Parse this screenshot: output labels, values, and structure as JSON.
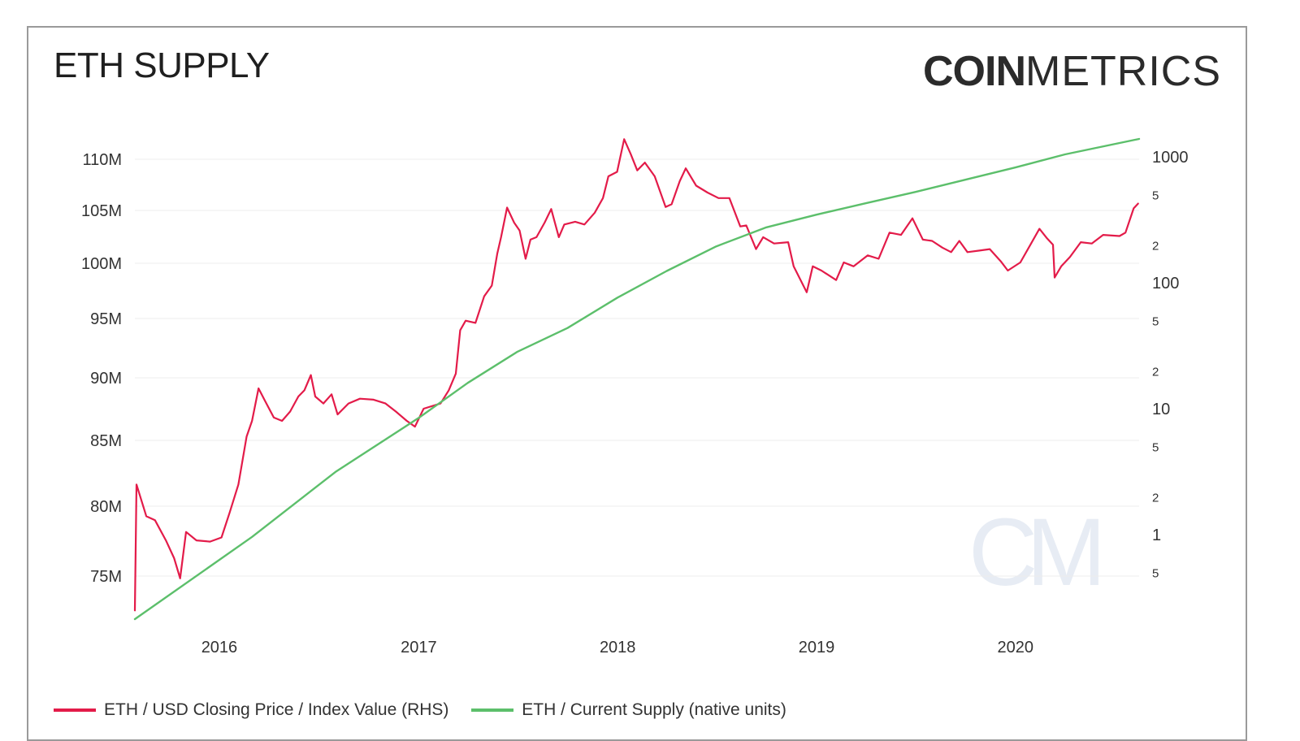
{
  "header": {
    "title": "ETH SUPPLY"
  },
  "logo": {
    "bold": "COIN",
    "light": "METRICS",
    "watermark": "CM"
  },
  "colors": {
    "price": "#e31b49",
    "supply": "#5cbf6b",
    "grid": "#ececec"
  },
  "chart_data": {
    "type": "line",
    "title": "ETH SUPPLY",
    "x_ticks": [
      "2016",
      "2017",
      "2018",
      "2019",
      "2020"
    ],
    "x_range": [
      "2015-07-30",
      "2020-08-15"
    ],
    "left_axis": {
      "ticks": [
        "75M",
        "80M",
        "85M",
        "90M",
        "95M",
        "100M",
        "105M",
        "110M"
      ],
      "tick_values": [
        75,
        80,
        85,
        90,
        95,
        100,
        105,
        110
      ],
      "unit": "millions"
    },
    "right_axis": {
      "scale": "log",
      "major_ticks": [
        {
          "label": "1",
          "value": 1
        },
        {
          "label": "10",
          "value": 10
        },
        {
          "label": "100",
          "value": 100
        },
        {
          "label": "1000",
          "value": 1000
        }
      ],
      "minor_ticks": [
        {
          "label": "5",
          "value": 0.5
        },
        {
          "label": "2",
          "value": 2
        },
        {
          "label": "5",
          "value": 5
        },
        {
          "label": "2",
          "value": 20
        },
        {
          "label": "5",
          "value": 50
        },
        {
          "label": "2",
          "value": 200
        },
        {
          "label": "5",
          "value": 500
        }
      ]
    },
    "legend_position": "bottom-left",
    "grid": true,
    "series": [
      {
        "name": "ETH / USD Closing Price / Index Value (RHS)",
        "axis": "right",
        "color": "#e31b49",
        "points": [
          [
            "2015-07-30",
            0.25
          ],
          [
            "2015-08-02",
            2.5
          ],
          [
            "2015-08-20",
            1.4
          ],
          [
            "2015-09-05",
            1.3
          ],
          [
            "2015-09-25",
            0.9
          ],
          [
            "2015-10-10",
            0.65
          ],
          [
            "2015-10-21",
            0.45
          ],
          [
            "2015-11-01",
            1.05
          ],
          [
            "2015-11-20",
            0.9
          ],
          [
            "2015-12-15",
            0.88
          ],
          [
            "2016-01-05",
            0.95
          ],
          [
            "2016-01-20",
            1.5
          ],
          [
            "2016-02-05",
            2.5
          ],
          [
            "2016-02-20",
            6.0
          ],
          [
            "2016-03-01",
            8.0
          ],
          [
            "2016-03-13",
            14.5
          ],
          [
            "2016-03-25",
            11.5
          ],
          [
            "2016-04-10",
            8.5
          ],
          [
            "2016-04-25",
            8.0
          ],
          [
            "2016-05-10",
            9.5
          ],
          [
            "2016-05-25",
            12.5
          ],
          [
            "2016-06-05",
            14.0
          ],
          [
            "2016-06-17",
            18.5
          ],
          [
            "2016-06-25",
            12.5
          ],
          [
            "2016-07-10",
            11.0
          ],
          [
            "2016-07-25",
            13.0
          ],
          [
            "2016-08-05",
            9.0
          ],
          [
            "2016-08-25",
            11.0
          ],
          [
            "2016-09-15",
            12.0
          ],
          [
            "2016-10-10",
            11.8
          ],
          [
            "2016-11-01",
            11.0
          ],
          [
            "2016-11-20",
            9.5
          ],
          [
            "2016-12-10",
            8.0
          ],
          [
            "2016-12-25",
            7.2
          ],
          [
            "2017-01-10",
            10.0
          ],
          [
            "2017-02-10",
            11.0
          ],
          [
            "2017-02-25",
            14.0
          ],
          [
            "2017-03-10",
            19.0
          ],
          [
            "2017-03-18",
            42.0
          ],
          [
            "2017-03-28",
            50.0
          ],
          [
            "2017-04-15",
            48.0
          ],
          [
            "2017-05-01",
            78.0
          ],
          [
            "2017-05-15",
            95.0
          ],
          [
            "2017-05-25",
            170.0
          ],
          [
            "2017-06-01",
            230.0
          ],
          [
            "2017-06-12",
            395.0
          ],
          [
            "2017-06-25",
            300.0
          ],
          [
            "2017-07-05",
            260.0
          ],
          [
            "2017-07-16",
            155.0
          ],
          [
            "2017-07-25",
            220.0
          ],
          [
            "2017-08-05",
            230.0
          ],
          [
            "2017-08-20",
            300.0
          ],
          [
            "2017-09-01",
            385.0
          ],
          [
            "2017-09-15",
            230.0
          ],
          [
            "2017-09-25",
            290.0
          ],
          [
            "2017-10-15",
            305.0
          ],
          [
            "2017-11-01",
            290.0
          ],
          [
            "2017-11-20",
            360.0
          ],
          [
            "2017-12-05",
            470.0
          ],
          [
            "2017-12-15",
            700.0
          ],
          [
            "2017-12-31",
            760.0
          ],
          [
            "2018-01-13",
            1380.0
          ],
          [
            "2018-01-25",
            1050.0
          ],
          [
            "2018-02-06",
            780.0
          ],
          [
            "2018-02-20",
            900.0
          ],
          [
            "2018-03-10",
            700.0
          ],
          [
            "2018-03-30",
            400.0
          ],
          [
            "2018-04-10",
            420.0
          ],
          [
            "2018-04-25",
            640.0
          ],
          [
            "2018-05-06",
            810.0
          ],
          [
            "2018-05-25",
            590.0
          ],
          [
            "2018-06-15",
            520.0
          ],
          [
            "2018-07-05",
            470.0
          ],
          [
            "2018-07-25",
            470.0
          ],
          [
            "2018-08-14",
            280.0
          ],
          [
            "2018-08-25",
            285.0
          ],
          [
            "2018-09-12",
            185.0
          ],
          [
            "2018-09-25",
            230.0
          ],
          [
            "2018-10-15",
            205.0
          ],
          [
            "2018-11-10",
            210.0
          ],
          [
            "2018-11-20",
            135.0
          ],
          [
            "2018-12-14",
            84.0
          ],
          [
            "2018-12-25",
            135.0
          ],
          [
            "2019-01-10",
            125.0
          ],
          [
            "2019-02-06",
            105.0
          ],
          [
            "2019-02-20",
            145.0
          ],
          [
            "2019-03-10",
            135.0
          ],
          [
            "2019-04-05",
            165.0
          ],
          [
            "2019-04-25",
            155.0
          ],
          [
            "2019-05-15",
            250.0
          ],
          [
            "2019-06-05",
            240.0
          ],
          [
            "2019-06-26",
            325.0
          ],
          [
            "2019-07-15",
            220.0
          ],
          [
            "2019-08-01",
            215.0
          ],
          [
            "2019-08-20",
            190.0
          ],
          [
            "2019-09-05",
            175.0
          ],
          [
            "2019-09-20",
            215.0
          ],
          [
            "2019-10-05",
            175.0
          ],
          [
            "2019-10-27",
            180.0
          ],
          [
            "2019-11-15",
            185.0
          ],
          [
            "2019-12-05",
            148.0
          ],
          [
            "2019-12-18",
            125.0
          ],
          [
            "2020-01-10",
            145.0
          ],
          [
            "2020-02-14",
            268.0
          ],
          [
            "2020-02-28",
            225.0
          ],
          [
            "2020-03-10",
            200.0
          ],
          [
            "2020-03-13",
            110.0
          ],
          [
            "2020-03-25",
            135.0
          ],
          [
            "2020-04-10",
            160.0
          ],
          [
            "2020-04-30",
            210.0
          ],
          [
            "2020-05-20",
            205.0
          ],
          [
            "2020-06-10",
            240.0
          ],
          [
            "2020-07-10",
            235.0
          ],
          [
            "2020-07-21",
            250.0
          ],
          [
            "2020-08-05",
            390.0
          ],
          [
            "2020-08-13",
            425.0
          ]
        ]
      },
      {
        "name": "ETH / Current Supply (native units)",
        "axis": "left",
        "color": "#5cbf6b",
        "points": [
          [
            "2015-07-30",
            72.0
          ],
          [
            "2016-03-01",
            77.8
          ],
          [
            "2016-08-01",
            82.6
          ],
          [
            "2017-01-01",
            86.8
          ],
          [
            "2017-04-01",
            89.6
          ],
          [
            "2017-07-01",
            92.2
          ],
          [
            "2017-10-01",
            94.2
          ],
          [
            "2018-01-01",
            96.9
          ],
          [
            "2018-04-01",
            99.3
          ],
          [
            "2018-07-01",
            101.6
          ],
          [
            "2018-10-01",
            103.4
          ],
          [
            "2019-01-01",
            104.6
          ],
          [
            "2019-04-01",
            105.7
          ],
          [
            "2019-07-01",
            106.8
          ],
          [
            "2019-10-01",
            108.0
          ],
          [
            "2020-01-01",
            109.2
          ],
          [
            "2020-04-01",
            110.5
          ],
          [
            "2020-08-15",
            112.1
          ]
        ]
      }
    ]
  }
}
